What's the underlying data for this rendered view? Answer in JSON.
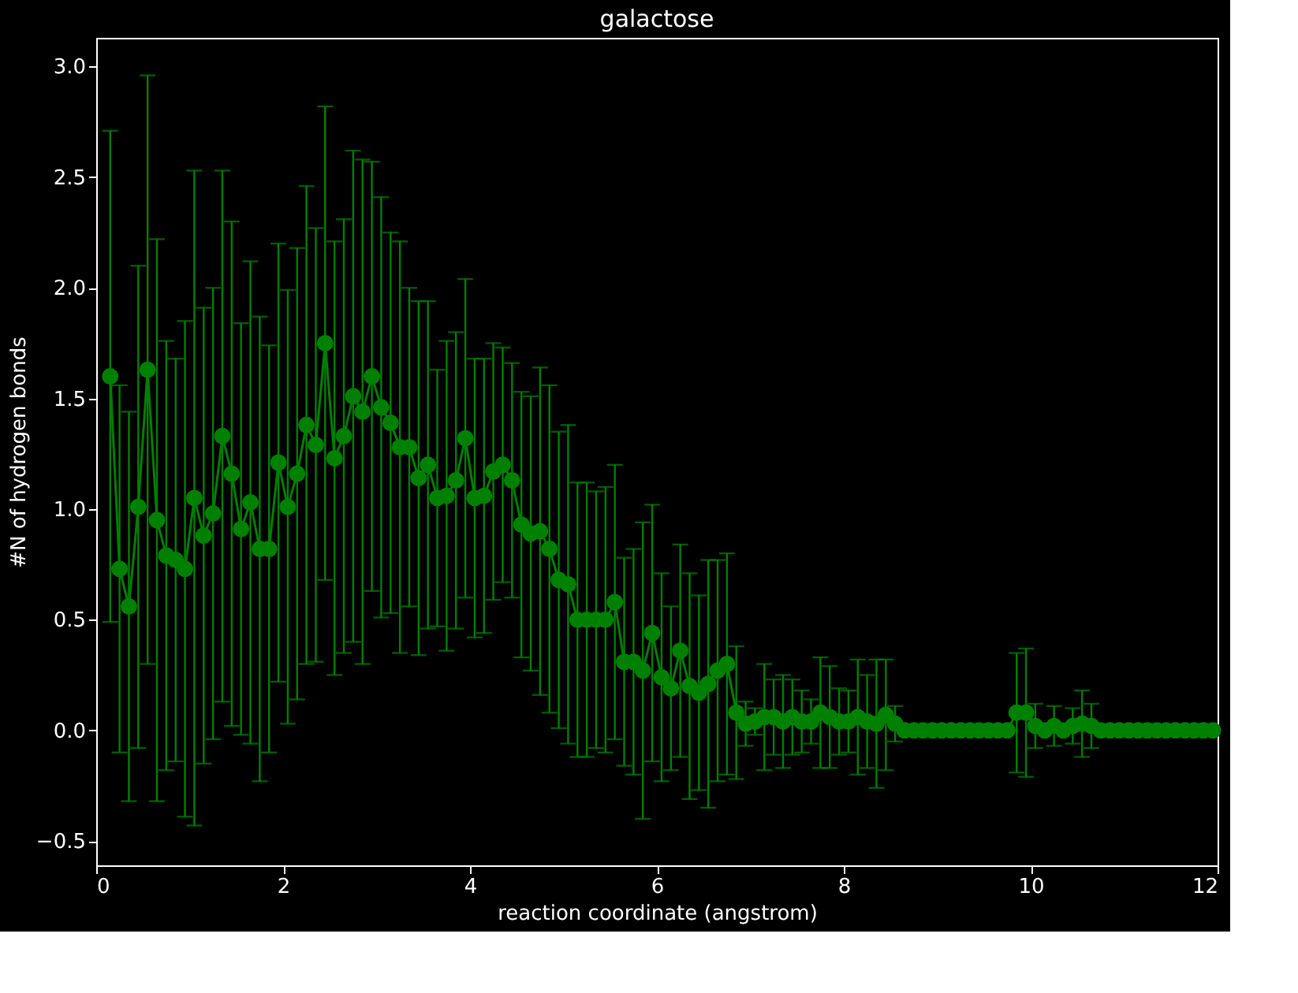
{
  "chart_data": {
    "type": "line",
    "title": "galactose",
    "xlabel": "reaction coordinate (angstrom)",
    "ylabel": "#N of hydrogen bonds",
    "x": [
      0.15,
      0.25,
      0.35,
      0.45,
      0.55,
      0.65,
      0.75,
      0.85,
      0.95,
      1.05,
      1.15,
      1.25,
      1.35,
      1.45,
      1.55,
      1.65,
      1.75,
      1.85,
      1.95,
      2.05,
      2.15,
      2.25,
      2.35,
      2.45,
      2.55,
      2.65,
      2.75,
      2.85,
      2.95,
      3.05,
      3.15,
      3.25,
      3.35,
      3.45,
      3.55,
      3.65,
      3.75,
      3.85,
      3.95,
      4.05,
      4.15,
      4.25,
      4.35,
      4.45,
      4.55,
      4.65,
      4.75,
      4.85,
      4.95,
      5.05,
      5.15,
      5.25,
      5.35,
      5.45,
      5.55,
      5.65,
      5.75,
      5.85,
      5.95,
      6.05,
      6.15,
      6.25,
      6.35,
      6.45,
      6.55,
      6.65,
      6.75,
      6.85,
      6.95,
      7.05,
      7.15,
      7.25,
      7.35,
      7.45,
      7.55,
      7.65,
      7.75,
      7.85,
      7.95,
      8.05,
      8.15,
      8.25,
      8.35,
      8.45,
      8.55,
      8.65,
      8.75,
      8.85,
      8.95,
      9.05,
      9.15,
      9.25,
      9.35,
      9.45,
      9.55,
      9.65,
      9.75,
      9.85,
      9.95,
      10.05,
      10.15,
      10.25,
      10.35,
      10.45,
      10.55,
      10.65,
      10.75,
      10.85,
      10.95,
      11.05,
      11.15,
      11.25,
      11.35,
      11.45,
      11.55,
      11.65,
      11.75,
      11.85,
      11.95
    ],
    "series": [
      {
        "color": "#008000",
        "values": [
          1.6,
          0.73,
          0.56,
          1.01,
          1.63,
          0.95,
          0.79,
          0.77,
          0.73,
          1.05,
          0.88,
          0.98,
          1.33,
          1.16,
          0.91,
          1.03,
          0.82,
          0.82,
          1.21,
          1.01,
          1.16,
          1.38,
          1.29,
          1.75,
          1.23,
          1.33,
          1.51,
          1.44,
          1.6,
          1.46,
          1.39,
          1.28,
          1.28,
          1.14,
          1.2,
          1.05,
          1.06,
          1.13,
          1.32,
          1.05,
          1.06,
          1.17,
          1.2,
          1.13,
          0.93,
          0.89,
          0.9,
          0.82,
          0.68,
          0.66,
          0.5,
          0.5,
          0.5,
          0.5,
          0.58,
          0.31,
          0.31,
          0.27,
          0.44,
          0.24,
          0.19,
          0.36,
          0.2,
          0.17,
          0.21,
          0.27,
          0.3,
          0.08,
          0.03,
          0.04,
          0.06,
          0.06,
          0.04,
          0.06,
          0.04,
          0.04,
          0.08,
          0.06,
          0.04,
          0.04,
          0.06,
          0.04,
          0.03,
          0.07,
          0.03,
          0,
          0,
          0,
          0,
          0,
          0,
          0,
          0,
          0,
          0,
          0,
          0,
          0.08,
          0.08,
          0.02,
          0,
          0.02,
          0,
          0.02,
          0.03,
          0.02,
          0,
          0,
          0,
          0,
          0,
          0,
          0,
          0,
          0,
          0,
          0,
          0,
          0
        ],
        "errors": [
          1.11,
          0.83,
          0.88,
          1.09,
          1.33,
          1.27,
          0.97,
          0.91,
          1.12,
          1.48,
          1.03,
          1.02,
          1.2,
          1.14,
          0.93,
          1.09,
          1.05,
          0.92,
          0.99,
          0.98,
          1.02,
          1.08,
          0.98,
          1.07,
          0.98,
          0.98,
          1.11,
          1.14,
          0.97,
          0.95,
          0.86,
          0.93,
          0.72,
          0.8,
          0.74,
          0.58,
          0.7,
          0.67,
          0.72,
          0.63,
          0.62,
          0.58,
          0.53,
          0.53,
          0.6,
          0.62,
          0.74,
          0.74,
          0.67,
          0.72,
          0.62,
          0.62,
          0.58,
          0.6,
          0.62,
          0.47,
          0.51,
          0.67,
          0.58,
          0.47,
          0.37,
          0.48,
          0.51,
          0.44,
          0.56,
          0.5,
          0.5,
          0.3,
          0.1,
          0.06,
          0.24,
          0.17,
          0.21,
          0.17,
          0.14,
          0.1,
          0.25,
          0.23,
          0.15,
          0.14,
          0.26,
          0.21,
          0.29,
          0.25,
          0.08,
          0,
          0,
          0,
          0,
          0,
          0,
          0,
          0,
          0,
          0,
          0,
          0,
          0.27,
          0.29,
          0.1,
          0,
          0.09,
          0,
          0.08,
          0.15,
          0.1,
          0,
          0,
          0,
          0,
          0,
          0,
          0,
          0,
          0,
          0,
          0,
          0,
          0
        ]
      }
    ],
    "xlim": [
      0,
      12
    ],
    "xticks": [
      0,
      2,
      4,
      6,
      8,
      10,
      12
    ],
    "ylim": [
      -0.61,
      3.13
    ],
    "yticks": [
      {
        "value": -0.5,
        "label": "−0.5"
      },
      {
        "value": 0,
        "label": "0.0"
      },
      0.5,
      {
        "value": 1,
        "label": "1.0"
      },
      1.5,
      {
        "value": 2,
        "label": "2.0"
      },
      2.5,
      {
        "value": 3,
        "label": "3.0"
      }
    ],
    "marker": "circle",
    "line_style": "solid",
    "grid": false
  }
}
